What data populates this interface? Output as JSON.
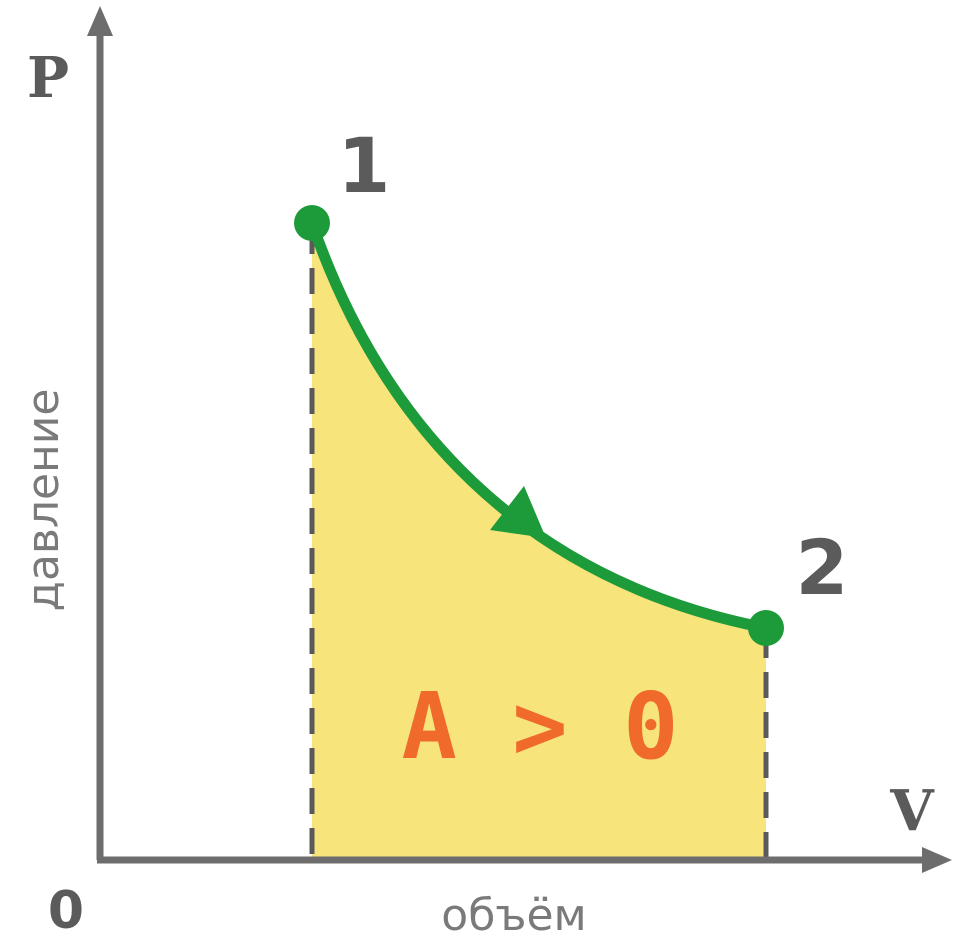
{
  "axes": {
    "y_name": "P",
    "x_name": "V",
    "origin": "0",
    "y_caption": "давление",
    "x_caption": "объём"
  },
  "points": [
    {
      "label": "1"
    },
    {
      "label": "2"
    }
  ],
  "work_label": "A > 0",
  "colors": {
    "axis": "#6d6d6d",
    "text": "#5b5b5b",
    "caption": "#7a7a7a",
    "curve": "#1d9a3a",
    "fill": "#f7e47a",
    "dash": "#5a5a5a",
    "work_text": "#f06a2c"
  }
}
